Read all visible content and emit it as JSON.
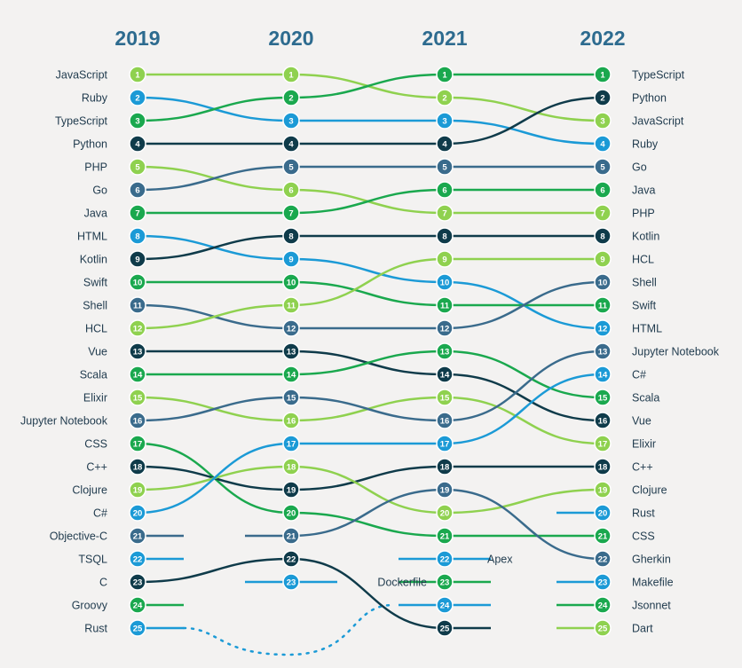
{
  "chart_data": {
    "type": "bump",
    "years": [
      "2019",
      "2020",
      "2021",
      "2022"
    ],
    "colors": {
      "lime": "#8fd14f",
      "green": "#1aa84e",
      "blue": "#1b9ad6",
      "navy": "#0f3b4a",
      "slate": "#3a6b8c",
      "year_text": "#2d6b8f",
      "label_text": "#1f3a4d"
    },
    "series": [
      {
        "name": "JavaScript",
        "color": "lime",
        "ranks": [
          1,
          1,
          2,
          3
        ]
      },
      {
        "name": "Ruby",
        "color": "blue",
        "ranks": [
          2,
          3,
          3,
          4
        ]
      },
      {
        "name": "TypeScript",
        "color": "green",
        "ranks": [
          3,
          2,
          1,
          1
        ]
      },
      {
        "name": "Python",
        "color": "navy",
        "ranks": [
          4,
          4,
          4,
          2
        ]
      },
      {
        "name": "PHP",
        "color": "lime",
        "ranks": [
          5,
          6,
          7,
          7
        ]
      },
      {
        "name": "Go",
        "color": "slate",
        "ranks": [
          6,
          5,
          5,
          5
        ]
      },
      {
        "name": "Java",
        "color": "green",
        "ranks": [
          7,
          7,
          6,
          6
        ]
      },
      {
        "name": "HTML",
        "color": "blue",
        "ranks": [
          8,
          9,
          10,
          12
        ]
      },
      {
        "name": "Kotlin",
        "color": "navy",
        "ranks": [
          9,
          8,
          8,
          8
        ]
      },
      {
        "name": "Swift",
        "color": "green",
        "ranks": [
          10,
          10,
          11,
          11
        ]
      },
      {
        "name": "Shell",
        "color": "slate",
        "ranks": [
          11,
          12,
          12,
          10
        ]
      },
      {
        "name": "HCL",
        "color": "lime",
        "ranks": [
          12,
          11,
          9,
          9
        ]
      },
      {
        "name": "Vue",
        "color": "navy",
        "ranks": [
          13,
          13,
          14,
          16
        ]
      },
      {
        "name": "Scala",
        "color": "green",
        "ranks": [
          14,
          14,
          13,
          15
        ]
      },
      {
        "name": "Elixir",
        "color": "lime",
        "ranks": [
          15,
          16,
          15,
          17
        ]
      },
      {
        "name": "Jupyter Notebook",
        "color": "slate",
        "ranks": [
          16,
          15,
          16,
          13
        ]
      },
      {
        "name": "CSS",
        "color": "green",
        "ranks": [
          17,
          20,
          21,
          21
        ]
      },
      {
        "name": "C++",
        "color": "navy",
        "ranks": [
          18,
          19,
          18,
          18
        ]
      },
      {
        "name": "Clojure",
        "color": "lime",
        "ranks": [
          19,
          18,
          20,
          19
        ]
      },
      {
        "name": "C#",
        "color": "blue",
        "ranks": [
          20,
          17,
          17,
          14
        ]
      },
      {
        "name": "Objective-C",
        "color": "slate",
        "ranks": [
          21,
          null,
          null,
          null
        ]
      },
      {
        "name": "TSQL",
        "color": "blue",
        "ranks": [
          22,
          null,
          null,
          null
        ]
      },
      {
        "name": "C",
        "color": "navy",
        "ranks": [
          23,
          22,
          25,
          null
        ]
      },
      {
        "name": "Groovy",
        "color": "green",
        "ranks": [
          24,
          null,
          null,
          null
        ]
      },
      {
        "name": "Rust",
        "color": "blue",
        "ranks": [
          25,
          null,
          null,
          20
        ]
      },
      {
        "name": "Gherkin",
        "color": "slate",
        "ranks": [
          null,
          21,
          19,
          22
        ]
      },
      {
        "name": "Makefile",
        "color": "blue",
        "ranks": [
          null,
          23,
          null,
          23
        ]
      },
      {
        "name": "Jsonnet",
        "color": "green",
        "ranks": [
          null,
          null,
          null,
          24
        ]
      },
      {
        "name": "Dart",
        "color": "lime",
        "ranks": [
          null,
          null,
          null,
          25
        ]
      },
      {
        "name": "Apex",
        "color": "blue",
        "ranks": [
          null,
          null,
          22,
          null
        ]
      },
      {
        "name": "Dockerfile",
        "color": "green",
        "ranks": [
          null,
          null,
          23,
          null
        ]
      },
      {
        "name": "",
        "color": "green",
        "ranks": [
          null,
          null,
          null,
          null
        ]
      },
      {
        "name": "",
        "color": "blue",
        "ranks": [
          null,
          null,
          24,
          null
        ]
      }
    ],
    "left_labels": [
      "JavaScript",
      "Ruby",
      "TypeScript",
      "Python",
      "PHP",
      "Go",
      "Java",
      "HTML",
      "Kotlin",
      "Swift",
      "Shell",
      "HCL",
      "Vue",
      "Scala",
      "Elixir",
      "Jupyter Notebook",
      "CSS",
      "C++",
      "Clojure",
      "C#",
      "Objective-C",
      "TSQL",
      "C",
      "Groovy",
      "Rust"
    ],
    "right_labels": [
      "TypeScript",
      "Python",
      "JavaScript",
      "Ruby",
      "Go",
      "Java",
      "PHP",
      "Kotlin",
      "HCL",
      "Shell",
      "Swift",
      "HTML",
      "Jupyter Notebook",
      "C#",
      "Scala",
      "Vue",
      "Elixir",
      "C++",
      "Clojure",
      "Rust",
      "CSS",
      "Gherkin",
      "Makefile",
      "Jsonnet",
      "Dart"
    ],
    "inline_labels": [
      {
        "text": "Apex",
        "year_index": 2,
        "rank": 22,
        "side": "right"
      },
      {
        "text": "Dockerfile",
        "year_index": 2,
        "rank": 23,
        "side": "left"
      }
    ],
    "dotted_connections": [
      {
        "from_year": 0,
        "from_rank": 25,
        "to_year": 2,
        "to_rank": 24
      }
    ]
  }
}
